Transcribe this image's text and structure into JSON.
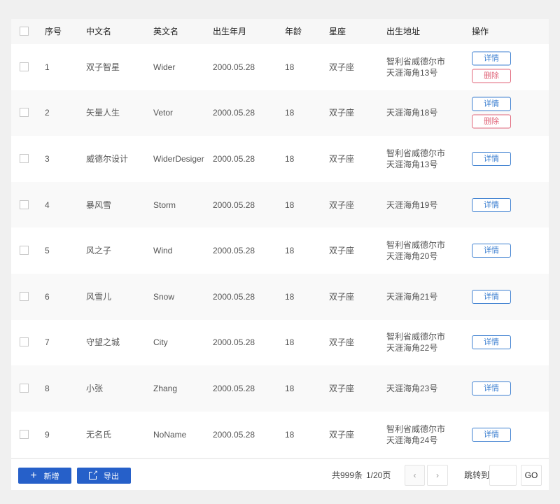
{
  "headers": {
    "index": "序号",
    "cn_name": "中文名",
    "en_name": "英文名",
    "birth": "出生年月",
    "age": "年龄",
    "sign": "星座",
    "address": "出生地址",
    "actions": "操作"
  },
  "actions": {
    "detail": "详情",
    "delete": "删除"
  },
  "rows": [
    {
      "index": "1",
      "cn_name": "双子智星",
      "en_name": "Wider",
      "birth": "2000.05.28",
      "age": "18",
      "sign": "双子座",
      "address1": "智利省威德尔市",
      "address2": "天涯海角13号",
      "deletable": true
    },
    {
      "index": "2",
      "cn_name": "矢量人生",
      "en_name": "Vetor",
      "birth": "2000.05.28",
      "age": "18",
      "sign": "双子座",
      "address1": "天涯海角18号",
      "address2": "",
      "deletable": true
    },
    {
      "index": "3",
      "cn_name": "威德尔设计",
      "en_name": "WiderDesiger",
      "birth": "2000.05.28",
      "age": "18",
      "sign": "双子座",
      "address1": "智利省威德尔市",
      "address2": "天涯海角13号",
      "deletable": false
    },
    {
      "index": "4",
      "cn_name": "暴风雪",
      "en_name": "Storm",
      "birth": "2000.05.28",
      "age": "18",
      "sign": "双子座",
      "address1": "天涯海角19号",
      "address2": "",
      "deletable": false
    },
    {
      "index": "5",
      "cn_name": "风之子",
      "en_name": "Wind",
      "birth": "2000.05.28",
      "age": "18",
      "sign": "双子座",
      "address1": "智利省威德尔市",
      "address2": "天涯海角20号",
      "deletable": false
    },
    {
      "index": "6",
      "cn_name": "风雪儿",
      "en_name": "Snow",
      "birth": "2000.05.28",
      "age": "18",
      "sign": "双子座",
      "address1": "天涯海角21号",
      "address2": "",
      "deletable": false
    },
    {
      "index": "7",
      "cn_name": "守望之城",
      "en_name": "City",
      "birth": "2000.05.28",
      "age": "18",
      "sign": "双子座",
      "address1": "智利省威德尔市",
      "address2": "天涯海角22号",
      "deletable": false
    },
    {
      "index": "8",
      "cn_name": "小张",
      "en_name": "Zhang",
      "birth": "2000.05.28",
      "age": "18",
      "sign": "双子座",
      "address1": "天涯海角23号",
      "address2": "",
      "deletable": false
    },
    {
      "index": "9",
      "cn_name": "无名氏",
      "en_name": "NoName",
      "birth": "2000.05.28",
      "age": "18",
      "sign": "双子座",
      "address1": "智利省威德尔市",
      "address2": "天涯海角24号",
      "deletable": false
    }
  ],
  "footer": {
    "add_label": "新增",
    "export_label": "导出",
    "total": "共999条",
    "page": "1/20页",
    "prev": "‹",
    "next": "›",
    "jump_label": "跳转到",
    "jump_value": "",
    "go_label": "GO"
  },
  "colors": {
    "primary": "#2660c9",
    "detail": "#3c7fd0",
    "danger": "#e0667a"
  }
}
